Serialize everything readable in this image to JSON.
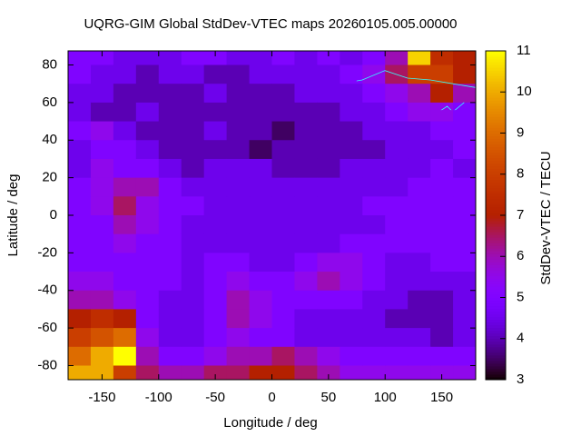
{
  "chart_data": {
    "type": "heatmap",
    "title": "UQRG-GIM Global StdDev-VTEC maps 20260105.005.00000",
    "x_label": "Longitude / deg",
    "y_label": "Latitude / deg",
    "colorbar_label": "StdDev-VTEC / TECU",
    "palette": "gnuplot",
    "xlim": [
      -180,
      180
    ],
    "ylim": [
      -87.5,
      87.5
    ],
    "zlim": [
      3,
      11
    ],
    "xticks": [
      -150,
      -100,
      -50,
      0,
      50,
      100,
      150
    ],
    "yticks": [
      -80,
      -60,
      -40,
      -20,
      0,
      20,
      40,
      60,
      80
    ],
    "zticks": [
      3,
      4,
      5,
      6,
      7,
      8,
      9,
      10,
      11
    ],
    "x": [
      -170,
      -150,
      -130,
      -110,
      -90,
      -70,
      -50,
      -30,
      -10,
      10,
      30,
      50,
      70,
      90,
      110,
      130,
      150,
      170
    ],
    "y": [
      85,
      75,
      65,
      55,
      45,
      35,
      25,
      15,
      5,
      -5,
      -15,
      -25,
      -35,
      -45,
      -55,
      -65,
      -75,
      -85
    ],
    "z": [
      [
        5,
        5,
        4.5,
        4.5,
        4.5,
        5,
        5,
        4.5,
        4.5,
        5,
        4.5,
        5,
        4.5,
        5,
        6,
        10.5,
        7.5,
        7
      ],
      [
        5,
        4.5,
        4.5,
        4,
        4.5,
        4.5,
        4,
        4,
        4.5,
        4.5,
        4.5,
        4.5,
        5,
        5.5,
        6.5,
        8,
        8,
        7
      ],
      [
        4.5,
        4.5,
        4,
        4,
        4,
        4,
        4.5,
        4,
        4,
        4,
        4.5,
        4.5,
        4.5,
        5,
        5.5,
        6,
        7,
        6
      ],
      [
        4.5,
        4,
        4,
        4.5,
        4,
        4,
        4,
        4,
        4,
        4,
        4,
        4,
        4.5,
        4.5,
        5,
        5.5,
        5.5,
        5
      ],
      [
        5,
        5.5,
        4.5,
        4,
        4,
        4,
        4.5,
        4,
        4,
        3.5,
        4,
        4,
        4,
        4.5,
        4.5,
        4.5,
        5,
        5
      ],
      [
        4.5,
        5,
        5,
        4.5,
        4,
        4,
        4,
        4,
        3.5,
        4,
        4,
        4,
        4,
        4,
        4.5,
        4.5,
        4.5,
        5
      ],
      [
        4.5,
        5.5,
        5,
        5,
        4.5,
        4,
        4.5,
        4.5,
        4.5,
        4,
        4,
        4,
        4.5,
        4.5,
        4.5,
        4.5,
        5,
        4.5
      ],
      [
        5,
        5.5,
        6,
        6,
        5,
        4.5,
        4.5,
        4.5,
        4.5,
        4.5,
        4.5,
        4.5,
        4.5,
        4.5,
        4.5,
        5,
        5,
        5
      ],
      [
        5,
        5.5,
        6.5,
        5.5,
        5,
        5,
        4.5,
        4.5,
        4.5,
        4.5,
        4.5,
        4.5,
        4.5,
        5,
        5,
        5,
        5,
        5
      ],
      [
        5,
        5,
        6,
        5.5,
        5,
        4.5,
        4.5,
        4.5,
        4.5,
        4.5,
        4.5,
        4.5,
        4.5,
        4.5,
        5,
        5,
        5,
        5
      ],
      [
        5,
        5,
        5.5,
        5,
        5,
        4.5,
        4.5,
        4.5,
        4.5,
        4.5,
        4.5,
        4.5,
        5,
        5,
        5,
        5,
        5,
        5
      ],
      [
        5,
        5,
        5,
        5,
        5,
        4.5,
        5,
        5,
        4.5,
        4.5,
        5,
        5.5,
        5.5,
        5,
        4.5,
        4.5,
        5,
        5
      ],
      [
        5.5,
        5.5,
        5,
        5,
        5,
        4.5,
        5,
        5.5,
        5,
        5,
        5.5,
        6,
        5.5,
        5,
        4.5,
        4.5,
        4.5,
        4.5
      ],
      [
        6,
        6,
        5.5,
        5,
        4.5,
        4.5,
        5,
        6,
        5.5,
        5,
        5,
        5,
        5,
        4.5,
        4.5,
        4,
        4,
        4.5
      ],
      [
        7,
        7.5,
        7,
        5,
        4.5,
        4.5,
        5,
        6,
        5.5,
        5,
        4.5,
        4.5,
        4.5,
        4.5,
        4,
        4,
        4,
        4.5
      ],
      [
        8,
        8.5,
        9,
        5.5,
        4.5,
        4.5,
        5,
        5.5,
        5,
        5,
        4.5,
        4.5,
        4.5,
        4.5,
        4.5,
        4.5,
        4,
        4.5
      ],
      [
        9,
        10,
        11,
        6,
        5,
        5,
        5.5,
        6,
        6,
        6.5,
        6,
        5.5,
        5,
        5,
        5,
        5,
        5,
        5
      ],
      [
        10,
        10,
        8,
        6.5,
        6,
        6,
        6.5,
        6.5,
        7,
        7,
        6.5,
        6,
        5.5,
        5.5,
        5.5,
        5.5,
        5.5,
        5.5
      ]
    ]
  }
}
